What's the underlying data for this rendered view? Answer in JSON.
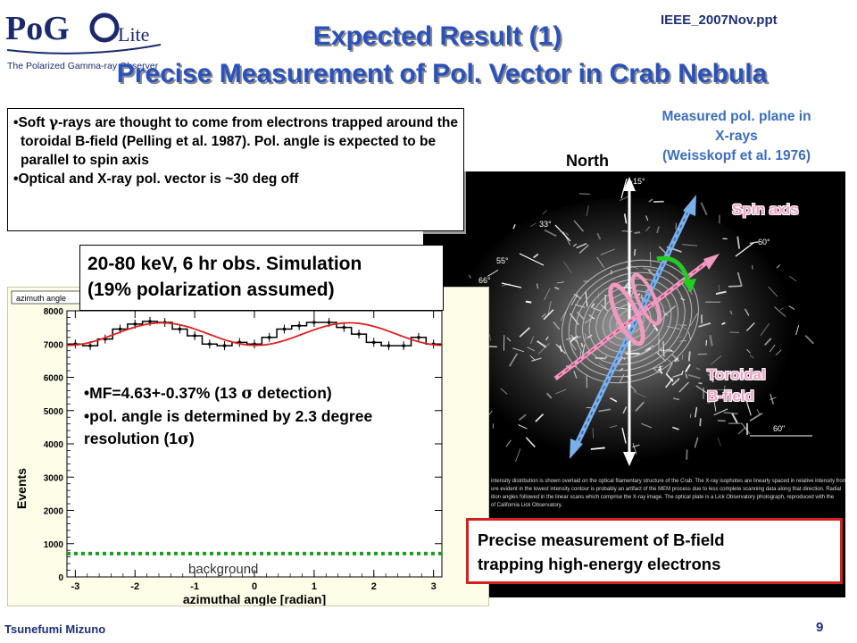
{
  "header": {
    "logo_text": "PoGOLite",
    "logo_po": "PoG",
    "logo_o": "O",
    "logo_lite": "Lite",
    "logo_tagline": "The Polarized Gamma-ray Observer",
    "ref": "IEEE_2007Nov.ppt",
    "title_line1": "Expected Result (1)",
    "title_line2": "Precise Measurement of Pol. Vector in Crab Nebula"
  },
  "bullets": {
    "b1_pre": "Soft ",
    "b1_sym": "γ",
    "b1_post": "-rays are thought to come from electrons trapped around the toroidal B-field (Pelling et al. 1987). Pol. angle is expected to be parallel to spin axis",
    "b2": "Optical and X-ray pol. vector is ~30 deg off"
  },
  "sim": {
    "line1": "20-80 keV, 6 hr obs. Simulation",
    "line2": "(19% polarization assumed)"
  },
  "fit": {
    "mf_pre": "MF=4.63+-0.37% (13 ",
    "mf_sym": "σ",
    "mf_post": " detection)",
    "angle_pre": "pol. angle is determined by 2.3 degree resolution (1",
    "angle_sym": "σ",
    "angle_post": ")"
  },
  "chart_data": {
    "type": "line",
    "title": "azimuth angle",
    "xlabel": "azimuthal angle [radian]",
    "ylabel": "Events",
    "xlim": [
      -3.14,
      3.14
    ],
    "ylim": [
      0,
      8000
    ],
    "x_ticks": [
      "-3",
      "-2",
      "-1",
      "0",
      "1",
      "2",
      "3"
    ],
    "y_ticks": [
      "0",
      "1000",
      "2000",
      "3000",
      "4000",
      "5000",
      "6000",
      "7000",
      "8000"
    ],
    "grid": false,
    "series": [
      {
        "name": "",
        "style": "histogram",
        "color": "#000000",
        "x": [
          -3.0,
          -2.75,
          -2.5,
          -2.25,
          -2.0,
          -1.75,
          -1.5,
          -1.25,
          -1.0,
          -0.75,
          -0.5,
          -0.25,
          0.0,
          0.25,
          0.5,
          0.75,
          1.0,
          1.25,
          1.5,
          1.75,
          2.0,
          2.25,
          2.5,
          2.75,
          3.0
        ],
        "values": [
          7000,
          6950,
          7150,
          7450,
          7600,
          7680,
          7650,
          7450,
          7250,
          7000,
          6950,
          7050,
          7000,
          7200,
          7450,
          7550,
          7650,
          7650,
          7500,
          7300,
          7050,
          6950,
          6950,
          7200,
          7000
        ]
      },
      {
        "name": "",
        "style": "fit",
        "color": "#e02020",
        "function": "A*(1+M*cos(2*(x-phi)))",
        "A": 7300,
        "M": 0.0463,
        "phi": -1.55
      },
      {
        "name": "background",
        "style": "dotted",
        "color": "#18a018",
        "y": 700
      }
    ]
  },
  "crab": {
    "north": "North",
    "measured_line1": "Measured pol. plane in",
    "measured_line2": "X-rays",
    "measured_line3": "(Weisskopf et al. 1976)",
    "spin_axis": "Spin axis",
    "toroidal_line1": "Toroidal",
    "toroidal_line2": "B-field",
    "angle_m15": "-15°",
    "angle_33": "33°",
    "angle_55": "55°",
    "angle_66": "66°",
    "angle_m60": "-60°",
    "scale_60": "60\"",
    "caption": "intensity distribution is shown overlaid on the optical filamentary structure of the Crab. The X-ray isophotes are linearly spaced in relative intensity from ... ure evident in the lowest intensity contour is probably an artifact of the MEM process due to less complete scanning data along that direction. Radial ...ition angles followed in the linear scans which comprise the X-ray image. The optical plate is a Lick Observatory photograph, reproduced with the ... of California Lick Observatory.",
    "spin_color": "#7ab0e8",
    "toroid_color": "#f09ac0",
    "green_color": "#22cc22"
  },
  "conclusion": {
    "line1": "Precise measurement of B-field",
    "line2": "trapping high-energy electrons"
  },
  "footer": {
    "author": "Tsunefumi Mizuno",
    "page": "9"
  }
}
